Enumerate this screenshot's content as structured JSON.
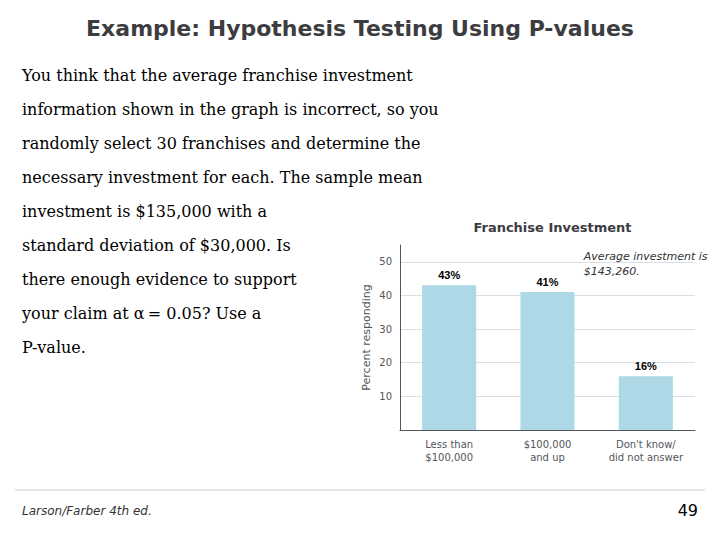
{
  "chart_data": {
    "type": "bar",
    "title": "Franchise Investment",
    "categories": [
      "Less than\n$100,000",
      "$100,000\nand up",
      "Don't know/\ndid not answer"
    ],
    "values": [
      43,
      41,
      16
    ],
    "value_labels": [
      "43%",
      "41%",
      "16%"
    ],
    "data_labels": true,
    "color": "#add8e6",
    "ylabel": "Percent responding",
    "ylim": [
      0,
      55
    ],
    "yticks": [
      10,
      20,
      30,
      40,
      50
    ],
    "grid": true,
    "annotations": [
      "Example: Hypothesis Testing Using P-values",
      "You think that the average franchise investment\ninformation shown in the graph is incorrect, so you\nrandomly select 30 franchises and determine the\nnecessary investment for each. The sample mean\ninvestment is $135,000 with a\nstandard deviation of $30,000. Is\nthere enough evidence to support\nyour claim at α = 0.05? Use a\nP-value.",
      "Average investment is\n$143,260.",
      "Larson/Farber 4th ed.",
      "49"
    ]
  }
}
